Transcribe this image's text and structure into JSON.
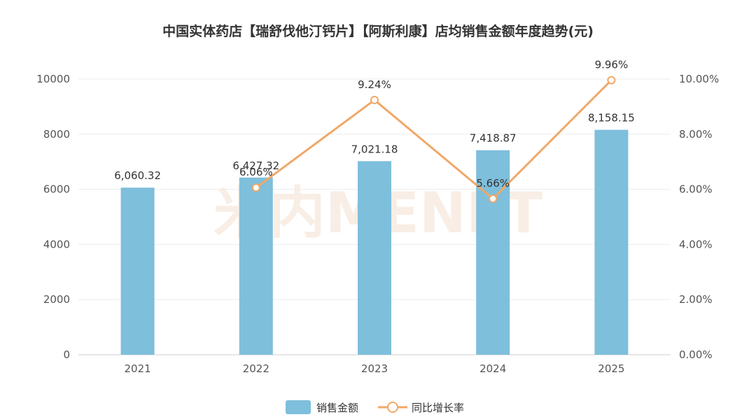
{
  "chart_data": {
    "type": "bar",
    "title": "中国实体药店【瑞舒伐他汀钙片】【阿斯利康】店均销售金额年度趋势(元)",
    "categories": [
      "2021",
      "2022",
      "2023",
      "2024",
      "2025"
    ],
    "series": [
      {
        "name": "销售金额",
        "type": "bar",
        "axis": "left",
        "color": "#7EBFDC",
        "values": [
          6060.32,
          6427.32,
          7021.18,
          7418.87,
          8158.15
        ],
        "labels": [
          "6,060.32",
          "6,427.32",
          "7,021.18",
          "7,418.87",
          "8,158.15"
        ]
      },
      {
        "name": "同比增长率",
        "type": "line",
        "axis": "right",
        "color": "#F0A868",
        "values": [
          null,
          6.06,
          9.24,
          5.66,
          9.96
        ],
        "labels": [
          "",
          "6.06%",
          "9.24%",
          "5.66%",
          "9.96%"
        ]
      }
    ],
    "y_left": {
      "min": 0,
      "max": 10000,
      "ticks": [
        "0",
        "2000",
        "4000",
        "6000",
        "8000",
        "10000"
      ]
    },
    "y_right": {
      "min": 0,
      "max": 10,
      "ticks": [
        "0.00%",
        "2.00%",
        "4.00%",
        "6.00%",
        "8.00%",
        "10.00%"
      ]
    },
    "grid": true,
    "legend_position": "bottom",
    "watermark": "米内MENET"
  }
}
